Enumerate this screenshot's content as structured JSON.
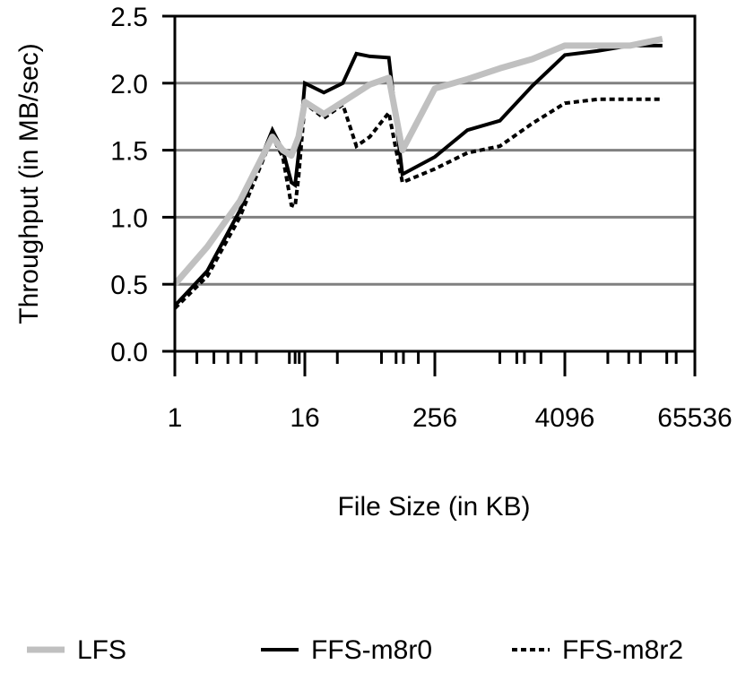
{
  "chart_data": {
    "type": "line",
    "title": "",
    "xlabel": "File Size (in KB)",
    "ylabel": "Throughput (in MB/sec)",
    "x_scale": "log2",
    "xlim": [
      1,
      65536
    ],
    "ylim": [
      0.0,
      2.5
    ],
    "x_tick_labels": [
      "1",
      "16",
      "256",
      "4096",
      "65536"
    ],
    "x_tick_values": [
      1,
      16,
      256,
      4096,
      65536
    ],
    "y_tick_labels": [
      "0.0",
      "0.5",
      "1.0",
      "1.5",
      "2.0",
      "2.5"
    ],
    "y_tick_values": [
      0.0,
      0.5,
      1.0,
      1.5,
      2.0,
      2.5
    ],
    "grid": "horizontal",
    "legend_position": "bottom",
    "series": [
      {
        "name": "LFS",
        "color": "#c0c0c0",
        "style": "solid-thick",
        "x": [
          1,
          2,
          4,
          8,
          10,
          12,
          14,
          16,
          24,
          36,
          64,
          96,
          128,
          256,
          512,
          1024,
          2048,
          4096,
          8192,
          16384,
          32768
        ],
        "y": [
          0.5,
          0.78,
          1.12,
          1.6,
          1.5,
          1.46,
          1.6,
          1.86,
          1.77,
          1.86,
          1.99,
          2.04,
          1.5,
          1.96,
          2.03,
          2.11,
          2.18,
          2.28,
          2.28,
          2.28,
          2.33
        ]
      },
      {
        "name": "FFS-m8r0",
        "color": "#000000",
        "style": "solid",
        "x": [
          1,
          2,
          4,
          8,
          10,
          12,
          13,
          14,
          16,
          24,
          36,
          48,
          64,
          96,
          128,
          256,
          512,
          1024,
          2048,
          4096,
          8192,
          16384,
          32768
        ],
        "y": [
          0.34,
          0.6,
          1.05,
          1.65,
          1.5,
          1.26,
          1.24,
          1.47,
          2.0,
          1.93,
          2.0,
          2.22,
          2.2,
          2.19,
          1.32,
          1.45,
          1.65,
          1.72,
          1.98,
          2.21,
          2.24,
          2.28,
          2.28
        ]
      },
      {
        "name": "FFS-m8r2",
        "color": "#000000",
        "style": "dashed-stepped",
        "x": [
          1,
          2,
          4,
          8,
          10,
          12,
          13,
          14,
          16,
          24,
          36,
          48,
          64,
          96,
          128,
          256,
          512,
          1024,
          2048,
          4096,
          8192,
          16384,
          32768
        ],
        "y": [
          0.32,
          0.56,
          1.0,
          1.6,
          1.45,
          1.09,
          1.08,
          1.3,
          1.85,
          1.74,
          1.84,
          1.53,
          1.6,
          1.78,
          1.26,
          1.36,
          1.48,
          1.53,
          1.7,
          1.85,
          1.88,
          1.88,
          1.88
        ]
      }
    ]
  }
}
